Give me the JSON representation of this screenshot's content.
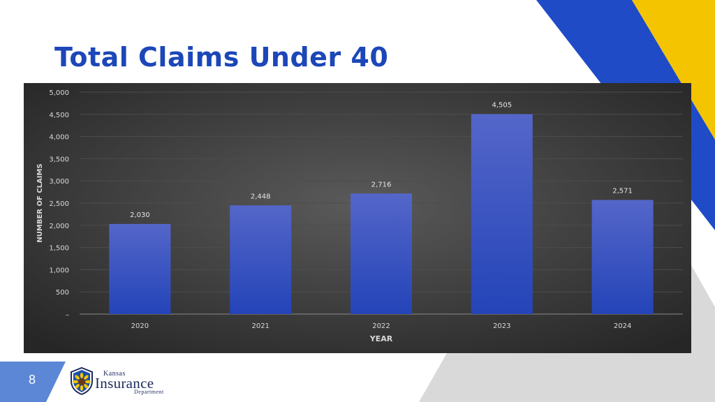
{
  "slide": {
    "title": "Total Claims Under 40",
    "page_number": "8"
  },
  "logo": {
    "line1": "Kansas",
    "line2": "Insurance",
    "line3": "Department"
  },
  "colors": {
    "title": "#1c47b8",
    "accent_blue": "#1f4bc7",
    "accent_yellow": "#f5c400",
    "bar_top": "#5466c9",
    "bar_bottom": "#2444b8"
  },
  "chart_data": {
    "type": "bar",
    "categories": [
      "2020",
      "2021",
      "2022",
      "2023",
      "2024"
    ],
    "values": [
      2030,
      2448,
      2716,
      4505,
      2571
    ],
    "value_labels": [
      "2,030",
      "2,448",
      "2,716",
      "4,505",
      "2,571"
    ],
    "ylim": [
      0,
      5000
    ],
    "y_ticks": [
      0,
      500,
      1000,
      1500,
      2000,
      2500,
      3000,
      3500,
      4000,
      4500,
      5000
    ],
    "y_tick_labels": [
      "–",
      "500",
      "1,000",
      "1,500",
      "2,000",
      "2,500",
      "3,000",
      "3,500",
      "4,000",
      "4,500",
      "5,000"
    ],
    "xlabel": "YEAR",
    "ylabel": "NUMBER OF CLAIMS",
    "grid": true,
    "legend": "none"
  }
}
